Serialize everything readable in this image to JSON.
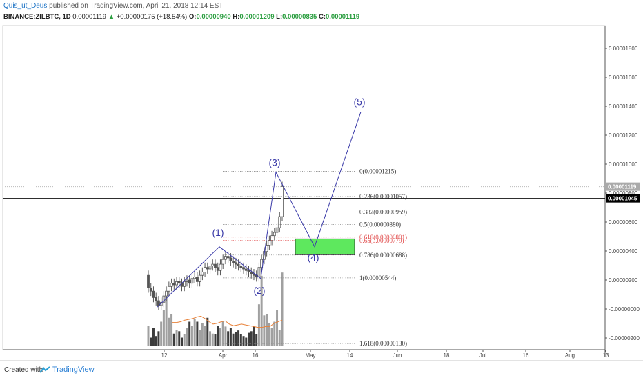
{
  "header": {
    "author": "Quis_ut_Deus",
    "published_text": "published on TradingView.com, April 21, 2018 12:14 EST",
    "symbol": "BINANCE:ZILBTC, 1D",
    "last_price": "0.00001119",
    "change_arrow": "▲",
    "change": "+0.00000175 (+18.54%)",
    "o_label": "O:",
    "o_value": "0.00000940",
    "h_label": "H:",
    "h_value": "0.00001209",
    "l_label": "L:",
    "l_value": "0.00000835",
    "c_label": "C:",
    "c_value": "0.00001119"
  },
  "footer": {
    "created_with": "Created with",
    "brand": "TradingView"
  },
  "colors": {
    "candle": "#555555",
    "wave_line": "#3a3aa8",
    "wave_label": "#3a3aa8",
    "fib_line": "#888888",
    "fib_highlight": "#e04848",
    "target_box": "#5ee85e",
    "volume_dark": "#3c3c3c",
    "volume_light": "#a0a0a0",
    "volume_ma": "#e8823a",
    "axis_text": "#444444",
    "price_tag_dark": "#000000",
    "price_tag_gray": "#aaaaaa"
  },
  "chart_data": {
    "type": "candlestick",
    "title": "",
    "xlabel": "",
    "ylabel": "",
    "ylim": [
      -2.5e-06,
      2e-05
    ],
    "x_ticks": [
      "12",
      "Apr",
      "16",
      "May",
      "14",
      "Jun",
      "18",
      "Jul",
      "16",
      "Aug",
      "13"
    ],
    "y_ticks": [
      "0.00001800",
      "0.00001600",
      "0.00001400",
      "0.00001200",
      "0.00001000",
      "0.00000800",
      "0.00000600",
      "0.00000400",
      "0.00000200",
      "-0.00000000",
      "-0.00000200"
    ],
    "price_tags": [
      {
        "label": "0.00001119",
        "value": 1.119e-05,
        "style": "gray"
      },
      {
        "label": "0.00001045",
        "value": 1.045e-05,
        "style": "dark"
      }
    ],
    "candles_close": [
      4.8e-06,
      4.6e-06,
      4.2e-06,
      4e-06,
      3.7e-06,
      3.9e-06,
      4.3e-06,
      4.6e-06,
      4.9e-06,
      5.1e-06,
      5e-06,
      5.2e-06,
      5.1e-06,
      4.9e-06,
      5.2e-06,
      5.3e-06,
      5.1e-06,
      5.4e-06,
      5.5e-06,
      5.2e-06,
      5.6e-06,
      5.8e-06,
      6.1e-06,
      6e-06,
      6.2e-06,
      6.3e-06,
      6.1e-06,
      5.9e-06,
      6.3e-06,
      6.6e-06,
      6.8e-06,
      6.7e-06,
      6.5e-06,
      6.4e-06,
      6.3e-06,
      6.2e-06,
      6.1e-06,
      6e-06,
      5.9e-06,
      5.8e-06,
      5.7e-06,
      5.6e-06,
      5.5e-06,
      6.1e-06,
      6.6e-06,
      7.1e-06,
      7.5e-06,
      7.8e-06,
      8.1e-06,
      8.3e-06,
      8.6e-06,
      9.3e-06,
      1.12e-05
    ],
    "volume": [
      25,
      10,
      22,
      12,
      18,
      30,
      45,
      62,
      35,
      40,
      15,
      20,
      18,
      10,
      14,
      22,
      30,
      25,
      34,
      30,
      20,
      28,
      25,
      35,
      18,
      15,
      14,
      25,
      22,
      30,
      24,
      18,
      22,
      15,
      17,
      19,
      14,
      12,
      10,
      16,
      18,
      24,
      14,
      52,
      88,
      38,
      40,
      28,
      22,
      30,
      45,
      20,
      92
    ],
    "volume_ma": [
      29,
      29,
      30,
      32,
      33,
      34,
      36,
      37,
      34,
      30,
      27,
      28,
      30,
      31,
      27,
      25,
      26,
      27,
      26,
      25,
      24,
      23,
      23,
      24,
      24,
      28,
      30,
      32
    ],
    "fib_levels": [
      {
        "label": "0(0.00001215)",
        "value": 1.215e-05,
        "highlight": false
      },
      {
        "label": "0.236(0.00001057)",
        "value": 1.057e-05,
        "highlight": false
      },
      {
        "label": "0.382(0.00000959)",
        "value": 9.59e-06,
        "highlight": false
      },
      {
        "label": "0.5(0.00000880)",
        "value": 8.8e-06,
        "highlight": false
      },
      {
        "label": "0.618(0.00000801)",
        "value": 8.01e-06,
        "highlight": true
      },
      {
        "label": "0.65(0.00000779)",
        "value": 7.79e-06,
        "highlight": true
      },
      {
        "label": "0.786(0.00000688)",
        "value": 6.88e-06,
        "highlight": false
      },
      {
        "label": "1(0.00000544)",
        "value": 5.44e-06,
        "highlight": false
      },
      {
        "label": "1.618(0.00000130)",
        "value": 1.3e-06,
        "highlight": false
      }
    ],
    "waves": [
      {
        "label": "",
        "value": 3.6e-06
      },
      {
        "label": "(1)",
        "value": 7.4e-06
      },
      {
        "label": "(2)",
        "value": 5.4e-06
      },
      {
        "label": "(3)",
        "value": 1.21e-05
      },
      {
        "label": "(4)",
        "value": 7.4e-06
      },
      {
        "label": "(5)",
        "value": 1.59e-05
      }
    ],
    "target_zone": {
      "from": 6.9e-06,
      "to": 7.9e-06
    }
  }
}
